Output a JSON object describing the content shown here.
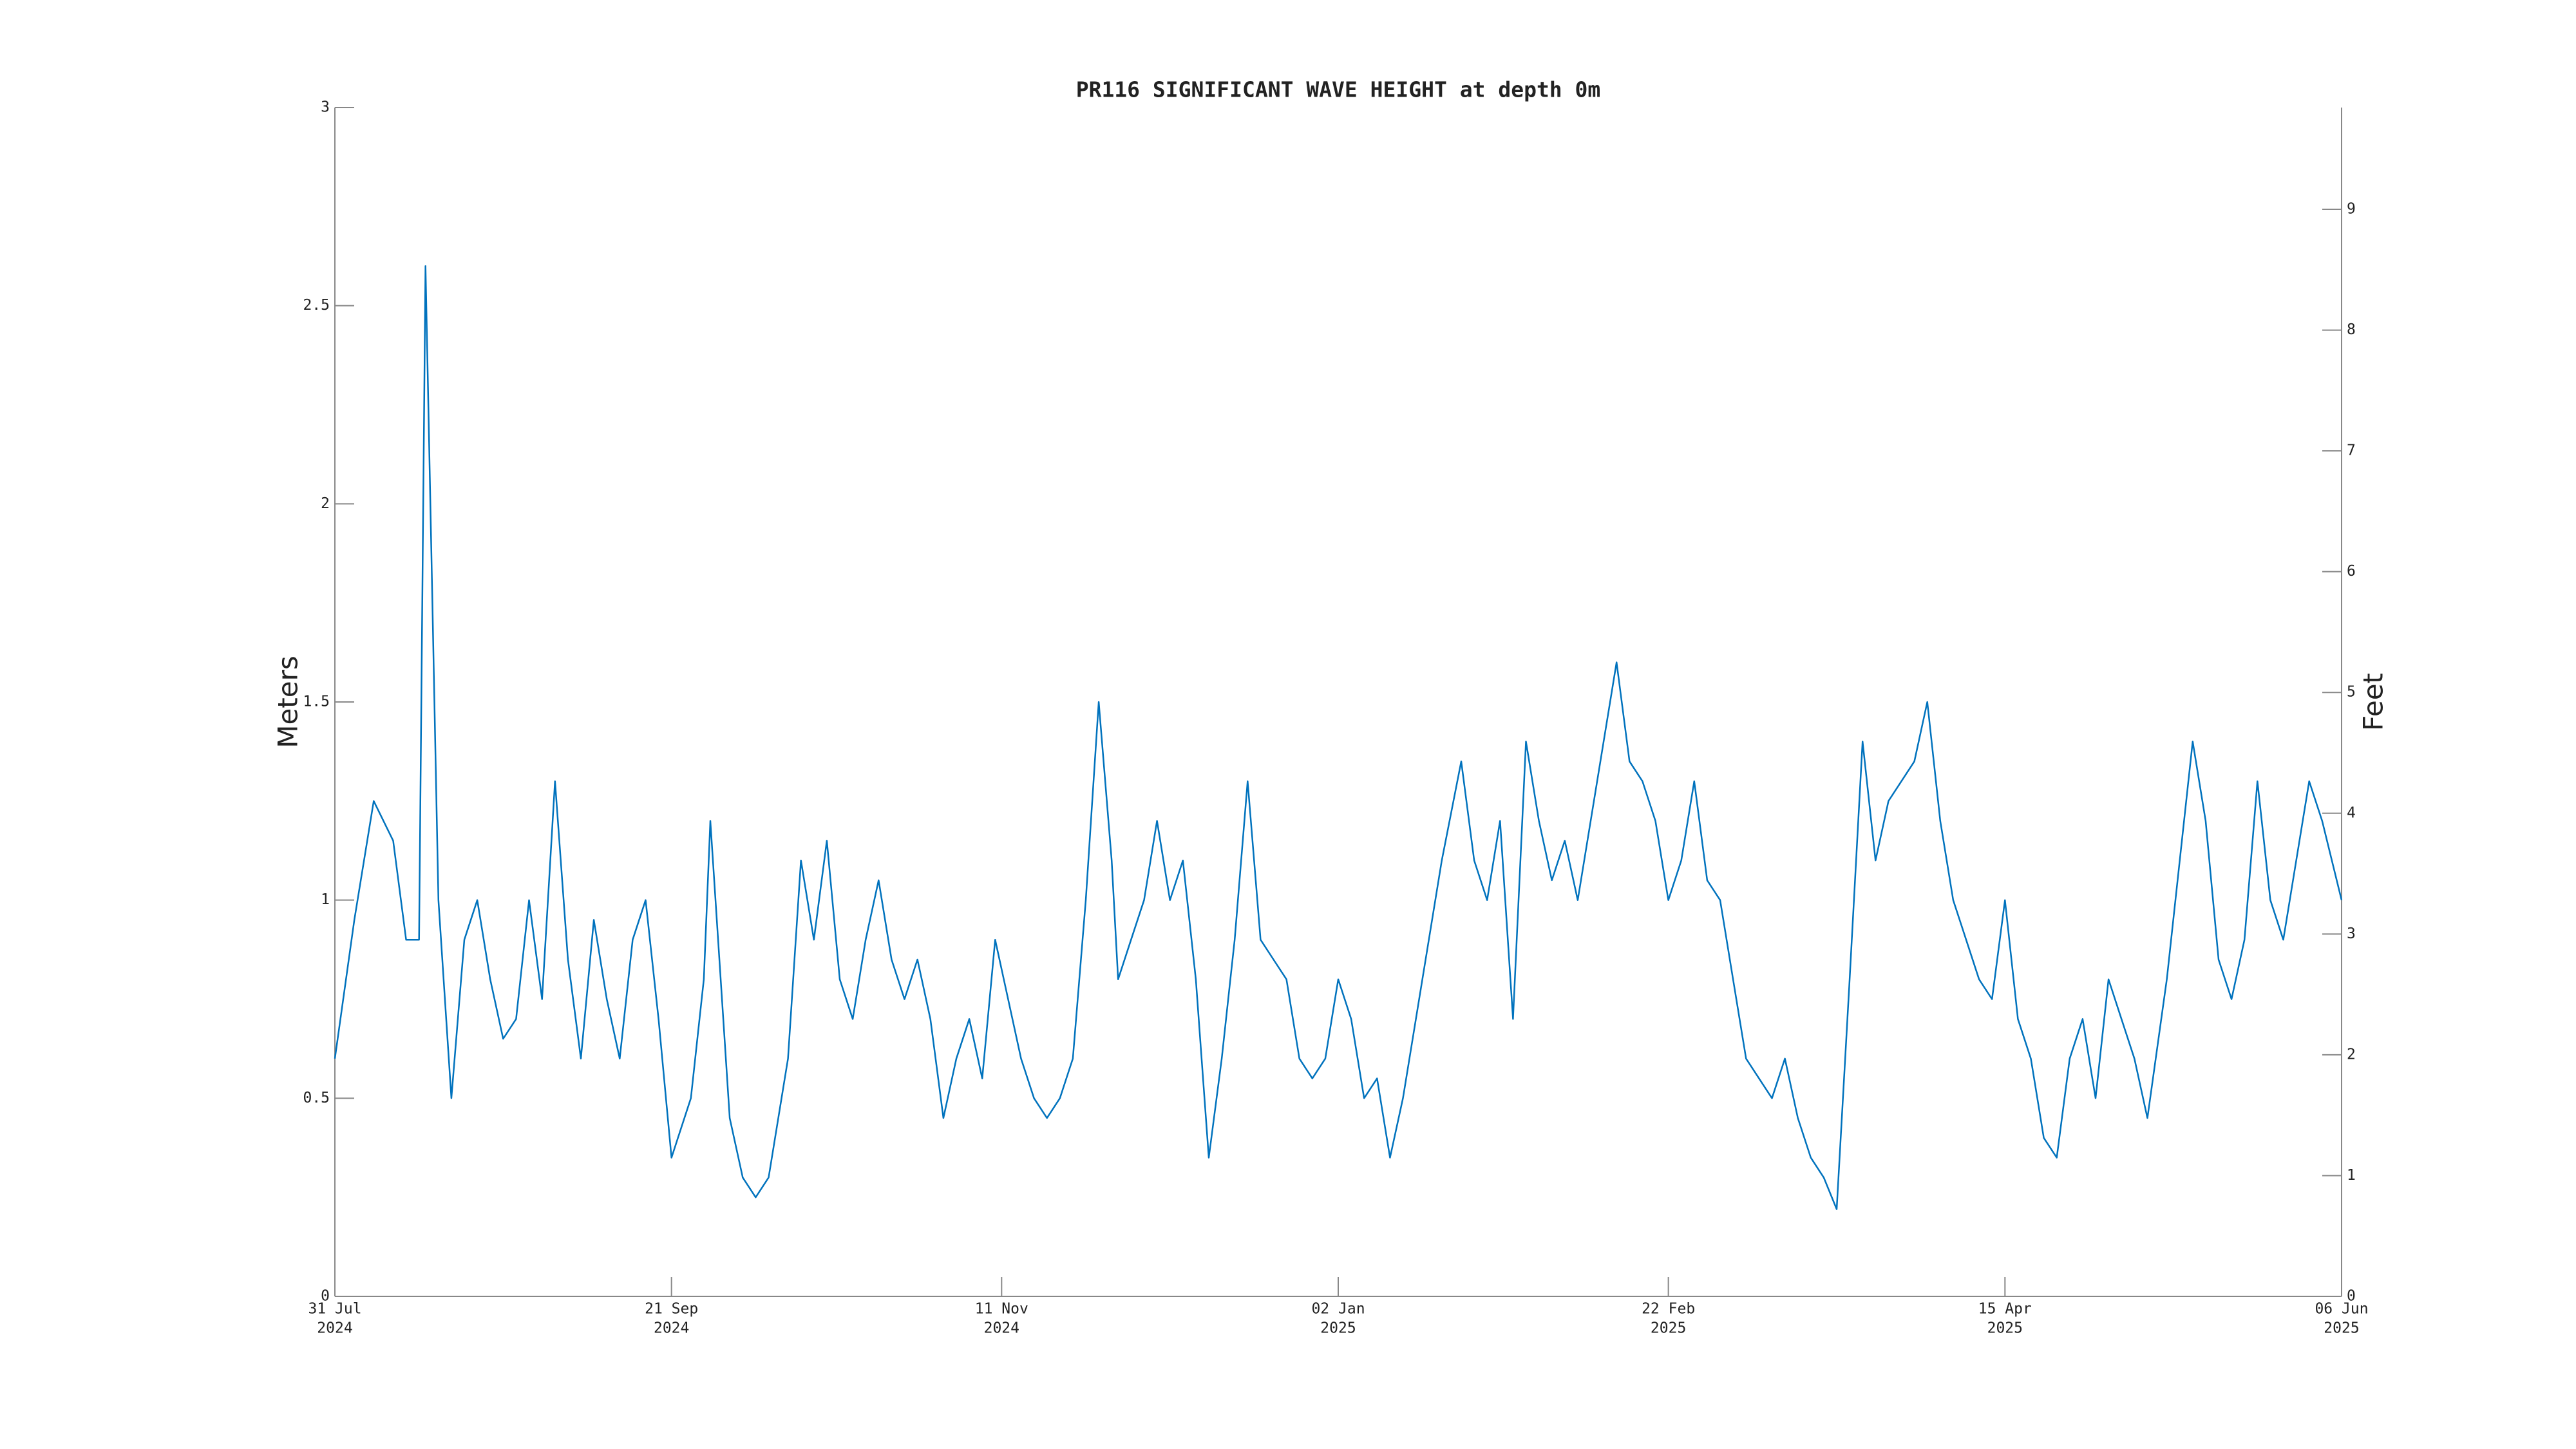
{
  "chart_data": {
    "type": "line",
    "title": "PR116 SIGNIFICANT WAVE HEIGHT at depth 0m",
    "y_label": "Meters",
    "y2_label": "Feet",
    "x": [
      "2024-07-31",
      "2024-08-03",
      "2024-08-06",
      "2024-08-09",
      "2024-08-11",
      "2024-08-13",
      "2024-08-14",
      "2024-08-15",
      "2024-08-16",
      "2024-08-18",
      "2024-08-20",
      "2024-08-22",
      "2024-08-24",
      "2024-08-26",
      "2024-08-28",
      "2024-08-30",
      "2024-09-01",
      "2024-09-03",
      "2024-09-05",
      "2024-09-07",
      "2024-09-09",
      "2024-09-11",
      "2024-09-13",
      "2024-09-15",
      "2024-09-17",
      "2024-09-19",
      "2024-09-21",
      "2024-09-22",
      "2024-09-24",
      "2024-09-26",
      "2024-09-27",
      "2024-09-29",
      "2024-09-30",
      "2024-10-02",
      "2024-10-04",
      "2024-10-06",
      "2024-10-09",
      "2024-10-11",
      "2024-10-13",
      "2024-10-15",
      "2024-10-17",
      "2024-10-19",
      "2024-10-21",
      "2024-10-23",
      "2024-10-25",
      "2024-10-27",
      "2024-10-29",
      "2024-10-31",
      "2024-11-02",
      "2024-11-04",
      "2024-11-06",
      "2024-11-08",
      "2024-11-10",
      "2024-11-12",
      "2024-11-14",
      "2024-11-16",
      "2024-11-18",
      "2024-11-20",
      "2024-11-22",
      "2024-11-24",
      "2024-11-26",
      "2024-11-28",
      "2024-11-29",
      "2024-12-01",
      "2024-12-03",
      "2024-12-05",
      "2024-12-07",
      "2024-12-09",
      "2024-12-11",
      "2024-12-13",
      "2024-12-15",
      "2024-12-17",
      "2024-12-19",
      "2024-12-21",
      "2024-12-23",
      "2024-12-25",
      "2024-12-27",
      "2024-12-29",
      "2024-12-31",
      "2025-01-02",
      "2025-01-04",
      "2025-01-06",
      "2025-01-08",
      "2025-01-10",
      "2025-01-12",
      "2025-01-14",
      "2025-01-16",
      "2025-01-18",
      "2025-01-21",
      "2025-01-23",
      "2025-01-25",
      "2025-01-27",
      "2025-01-29",
      "2025-01-31",
      "2025-02-02",
      "2025-02-04",
      "2025-02-06",
      "2025-02-08",
      "2025-02-10",
      "2025-02-12",
      "2025-02-14",
      "2025-02-16",
      "2025-02-18",
      "2025-02-20",
      "2025-02-22",
      "2025-02-24",
      "2025-02-26",
      "2025-02-28",
      "2025-03-02",
      "2025-03-04",
      "2025-03-06",
      "2025-03-08",
      "2025-03-10",
      "2025-03-12",
      "2025-03-14",
      "2025-03-16",
      "2025-03-18",
      "2025-03-20",
      "2025-03-22",
      "2025-03-24",
      "2025-03-26",
      "2025-03-28",
      "2025-03-30",
      "2025-04-01",
      "2025-04-03",
      "2025-04-05",
      "2025-04-07",
      "2025-04-09",
      "2025-04-11",
      "2025-04-13",
      "2025-04-15",
      "2025-04-17",
      "2025-04-19",
      "2025-04-21",
      "2025-04-23",
      "2025-04-25",
      "2025-04-27",
      "2025-04-29",
      "2025-05-01",
      "2025-05-03",
      "2025-05-05",
      "2025-05-07",
      "2025-05-10",
      "2025-05-12",
      "2025-05-14",
      "2025-05-16",
      "2025-05-18",
      "2025-05-20",
      "2025-05-22",
      "2025-05-24",
      "2025-05-26",
      "2025-05-28",
      "2025-05-30",
      "2025-06-01",
      "2025-06-03",
      "2025-06-06"
    ],
    "series": [
      {
        "color": "#0072bd",
        "values": [
          0.6,
          0.95,
          1.25,
          1.15,
          0.9,
          0.9,
          2.6,
          1.8,
          1.0,
          0.5,
          0.9,
          1.0,
          0.8,
          0.65,
          0.7,
          1.0,
          0.75,
          1.3,
          0.85,
          0.6,
          0.95,
          0.75,
          0.6,
          0.9,
          1.0,
          0.7,
          0.35,
          0.4,
          0.5,
          0.8,
          1.2,
          0.7,
          0.45,
          0.3,
          0.25,
          0.3,
          0.6,
          1.1,
          0.9,
          1.15,
          0.8,
          0.7,
          0.9,
          1.05,
          0.85,
          0.75,
          0.85,
          0.7,
          0.45,
          0.6,
          0.7,
          0.55,
          0.9,
          0.75,
          0.6,
          0.5,
          0.45,
          0.5,
          0.6,
          1.0,
          1.5,
          1.1,
          0.8,
          0.9,
          1.0,
          1.2,
          1.0,
          1.1,
          0.8,
          0.35,
          0.6,
          0.9,
          1.3,
          0.9,
          0.85,
          0.8,
          0.6,
          0.55,
          0.6,
          0.8,
          0.7,
          0.5,
          0.55,
          0.35,
          0.5,
          0.7,
          0.9,
          1.1,
          1.35,
          1.1,
          1.0,
          1.2,
          0.7,
          1.4,
          1.2,
          1.05,
          1.15,
          1.0,
          1.2,
          1.4,
          1.6,
          1.35,
          1.3,
          1.2,
          1.0,
          1.1,
          1.3,
          1.05,
          1.0,
          0.8,
          0.6,
          0.55,
          0.5,
          0.6,
          0.45,
          0.35,
          0.3,
          0.22,
          0.8,
          1.4,
          1.1,
          1.25,
          1.3,
          1.35,
          1.5,
          1.2,
          1.0,
          0.9,
          0.8,
          0.75,
          1.0,
          0.7,
          0.6,
          0.4,
          0.35,
          0.6,
          0.7,
          0.5,
          0.8,
          0.7,
          0.6,
          0.45,
          0.8,
          1.1,
          1.4,
          1.2,
          0.85,
          0.75,
          0.9,
          1.3,
          1.0,
          0.9,
          1.1,
          1.3,
          1.2,
          1.0
        ]
      }
    ],
    "xlim": [
      "2024-07-31",
      "2025-06-06"
    ],
    "xticks": [
      {
        "value": "2024-07-31",
        "label": [
          "31 Jul",
          "2024"
        ]
      },
      {
        "value": "2024-09-21",
        "label": [
          "21 Sep",
          "2024"
        ]
      },
      {
        "value": "2024-11-11",
        "label": [
          "11 Nov",
          "2024"
        ]
      },
      {
        "value": "2025-01-02",
        "label": [
          "02 Jan",
          "2025"
        ]
      },
      {
        "value": "2025-02-22",
        "label": [
          "22 Feb",
          "2025"
        ]
      },
      {
        "value": "2025-04-15",
        "label": [
          "15 Apr",
          "2025"
        ]
      },
      {
        "value": "2025-06-06",
        "label": [
          "06 Jun",
          "2025"
        ]
      }
    ],
    "ylim": [
      0,
      3
    ],
    "yticks": [
      0,
      0.5,
      1,
      1.5,
      2,
      2.5,
      3
    ],
    "y2lim": [
      0,
      9.8425
    ],
    "y2ticks": [
      0,
      1,
      2,
      3,
      4,
      5,
      6,
      7,
      8,
      9
    ]
  }
}
